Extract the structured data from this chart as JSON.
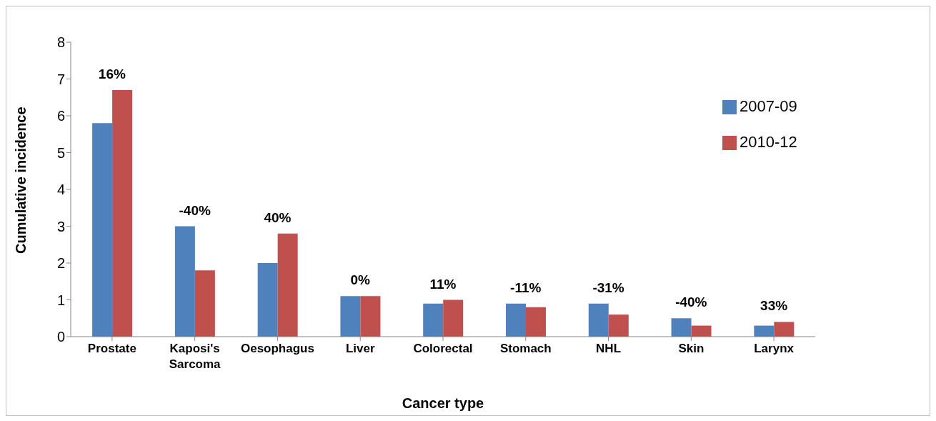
{
  "chart_data": {
    "type": "bar",
    "xlabel": "Cancer type",
    "ylabel": "Cumulative incidence",
    "categories": [
      "Prostate",
      "Kaposi's Sarcoma",
      "Oesophagus",
      "Liver",
      "Colorectal",
      "Stomach",
      "NHL",
      "Skin",
      "Larynx"
    ],
    "series": [
      {
        "name": "2007-09",
        "color": "#4f81bd",
        "values": [
          5.8,
          3.0,
          2.0,
          1.1,
          0.9,
          0.9,
          0.9,
          0.5,
          0.3
        ]
      },
      {
        "name": "2010-12",
        "color": "#c0504d",
        "values": [
          6.7,
          1.8,
          2.8,
          1.1,
          1.0,
          0.8,
          0.6,
          0.3,
          0.4
        ]
      }
    ],
    "ylim": [
      0,
      8
    ],
    "yticks": [
      0,
      1,
      2,
      3,
      4,
      5,
      6,
      7,
      8
    ],
    "grid": false,
    "legend": "top right",
    "annotations": [
      {
        "text": "16%",
        "x": "Prostate",
        "y": 6.7
      },
      {
        "text": "-40%",
        "x": "Kaposi's Sarcoma",
        "y": 3.0
      },
      {
        "text": "40%",
        "x": "Oesophagus",
        "y": 2.8
      },
      {
        "text": "0%",
        "x": "Liver",
        "y": 1.1
      },
      {
        "text": "11%",
        "x": "Colorectal",
        "y": 1.0
      },
      {
        "text": "-11%",
        "x": "Stomach",
        "y": 0.9
      },
      {
        "text": "-31%",
        "x": "NHL",
        "y": 0.9
      },
      {
        "text": "-40%",
        "x": "Skin",
        "y": 0.5
      },
      {
        "text": "33%",
        "x": "Larynx",
        "y": 0.4
      }
    ]
  }
}
